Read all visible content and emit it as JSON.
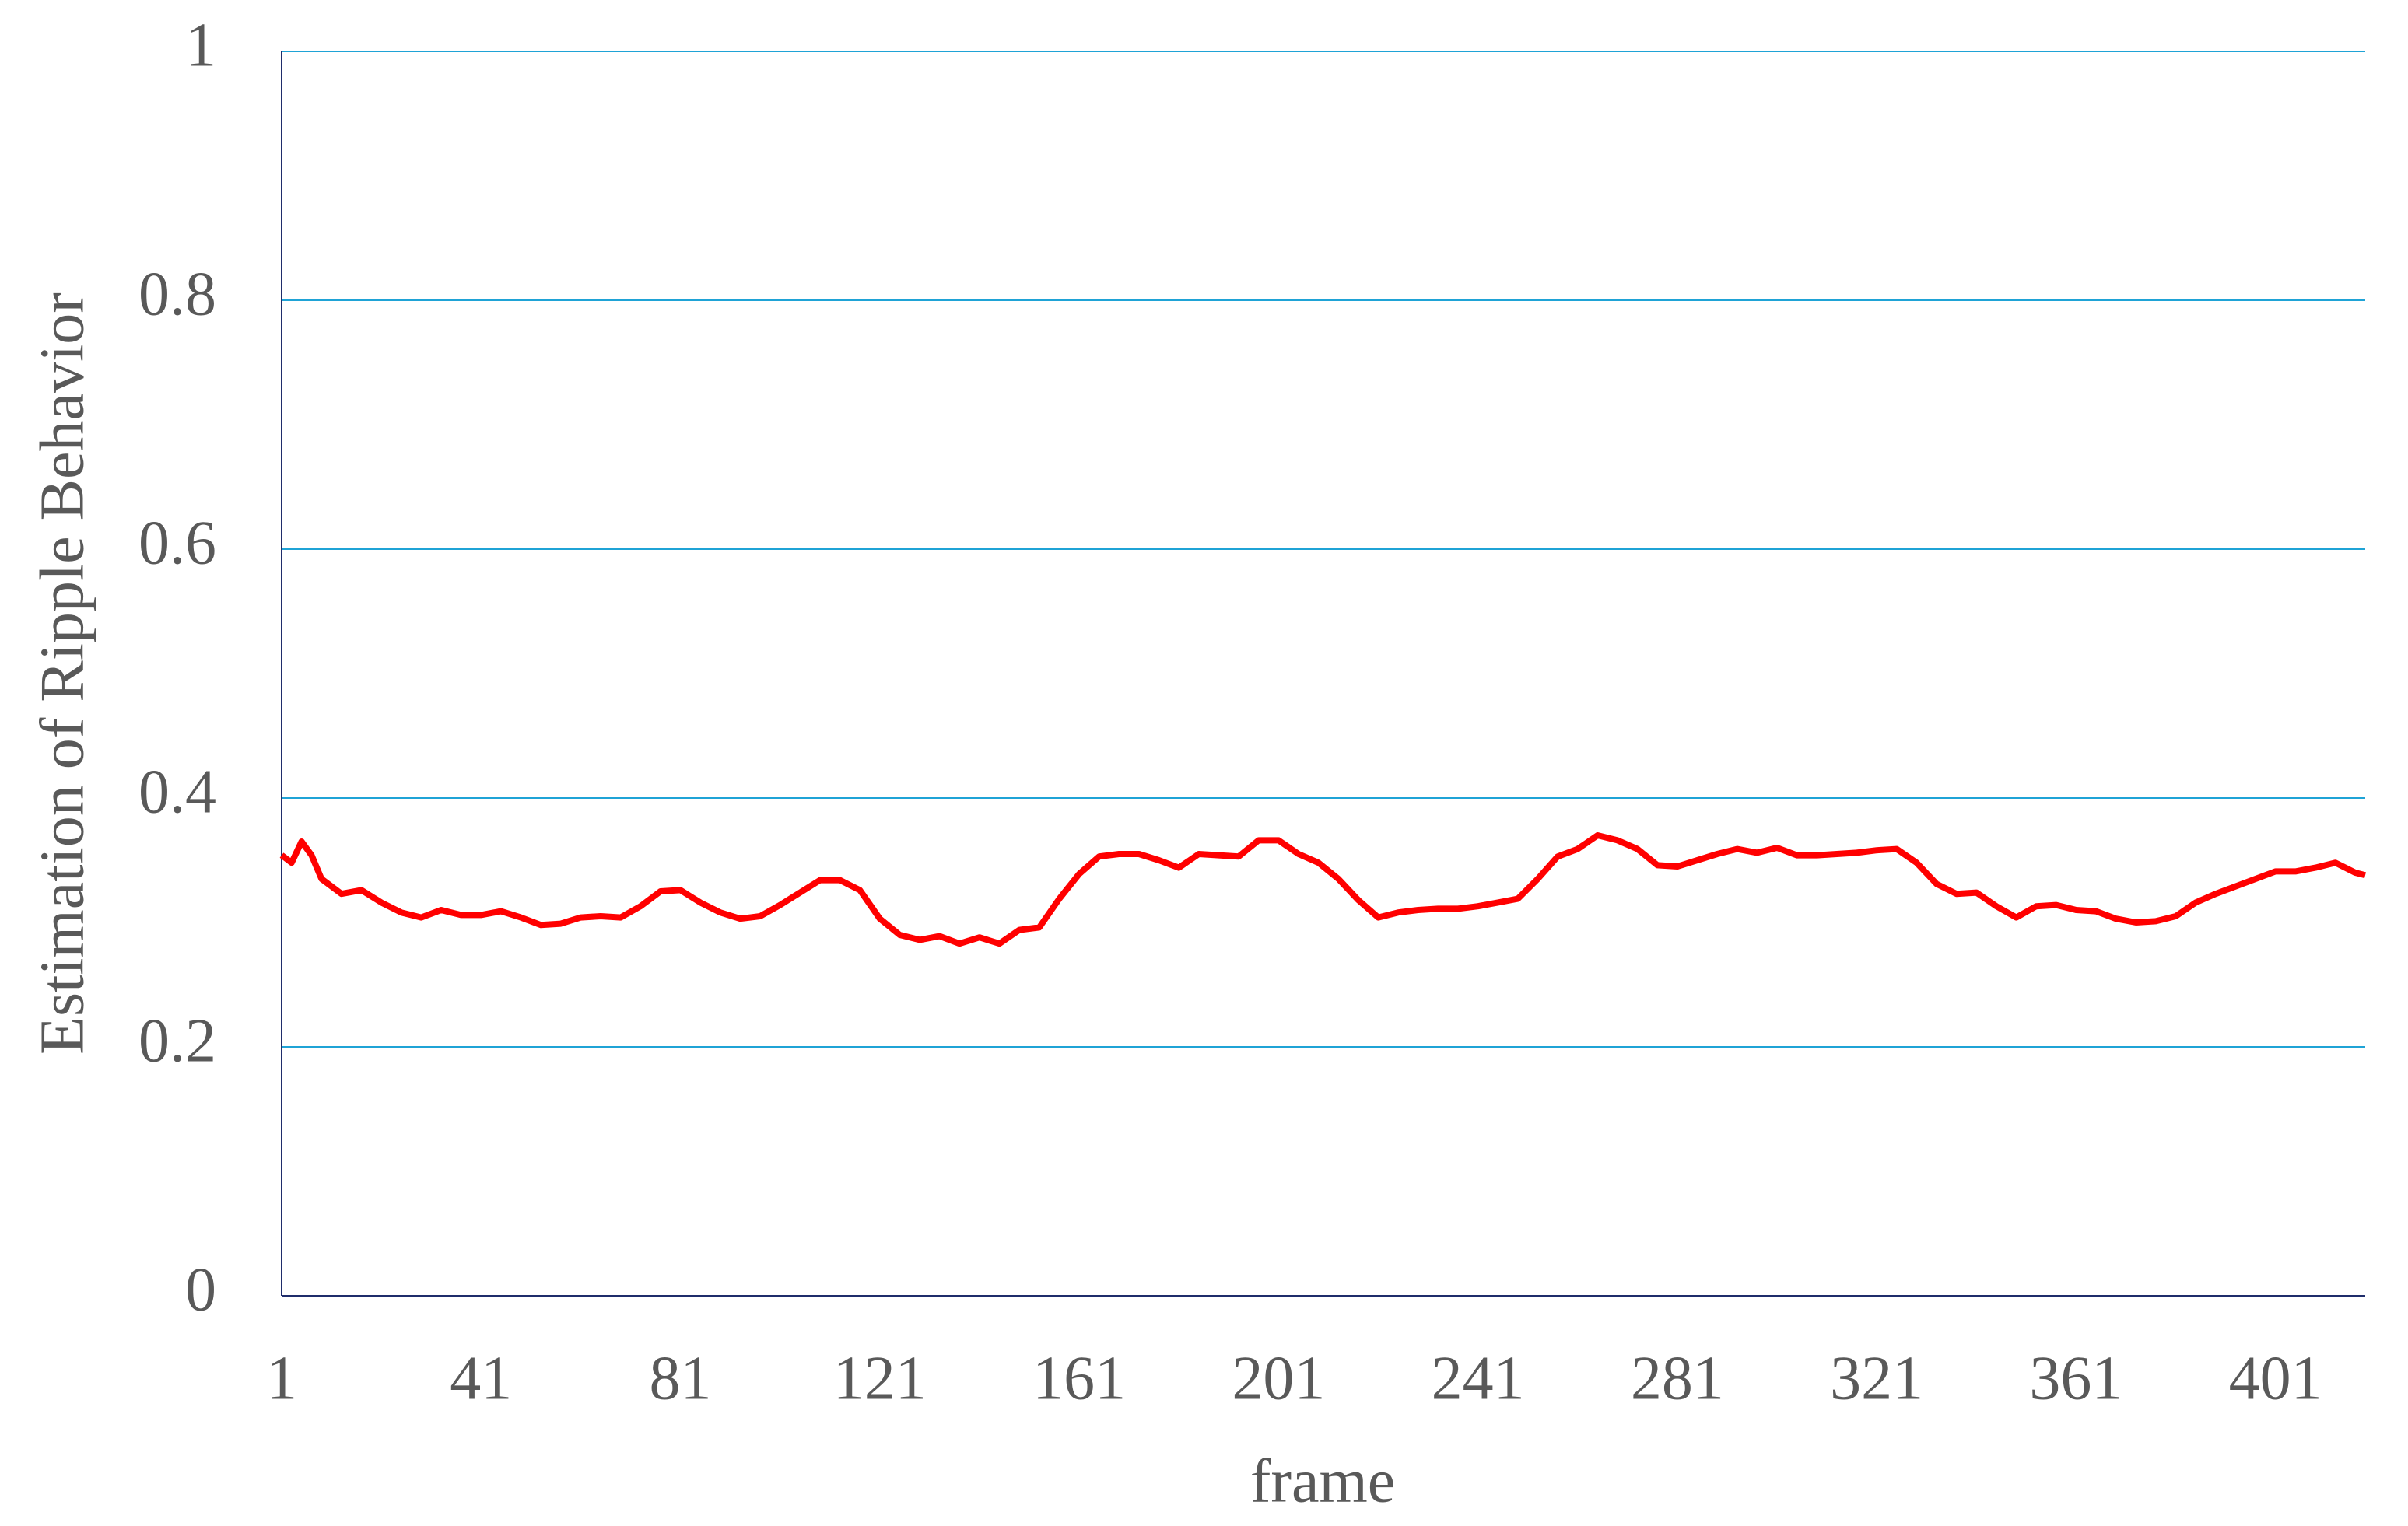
{
  "chart_data": {
    "type": "line",
    "xlabel": "frame",
    "ylabel": "Estimation of Ripple Behavior",
    "x": [
      1,
      3,
      5,
      7,
      9,
      13,
      17,
      21,
      25,
      29,
      33,
      37,
      41,
      45,
      49,
      53,
      57,
      61,
      65,
      69,
      73,
      77,
      81,
      85,
      89,
      93,
      97,
      101,
      105,
      109,
      113,
      117,
      121,
      125,
      129,
      133,
      137,
      141,
      145,
      149,
      153,
      157,
      161,
      165,
      169,
      173,
      177,
      181,
      185,
      189,
      193,
      197,
      201,
      205,
      209,
      213,
      217,
      221,
      225,
      229,
      233,
      237,
      241,
      245,
      249,
      253,
      257,
      261,
      265,
      269,
      273,
      277,
      281,
      285,
      289,
      293,
      297,
      301,
      305,
      309,
      313,
      317,
      321,
      325,
      329,
      333,
      337,
      341,
      345,
      349,
      353,
      357,
      361,
      365,
      369,
      373,
      377,
      381,
      385,
      389,
      393,
      397,
      401,
      405,
      409,
      413,
      417,
      419
    ],
    "series": [
      {
        "color": "#ff0000",
        "values": [
          0.354,
          0.348,
          0.365,
          0.354,
          0.335,
          0.323,
          0.326,
          0.316,
          0.308,
          0.304,
          0.31,
          0.306,
          0.306,
          0.309,
          0.304,
          0.298,
          0.299,
          0.304,
          0.305,
          0.304,
          0.313,
          0.325,
          0.326,
          0.316,
          0.308,
          0.303,
          0.305,
          0.314,
          0.324,
          0.334,
          0.334,
          0.326,
          0.303,
          0.29,
          0.286,
          0.289,
          0.283,
          0.288,
          0.283,
          0.294,
          0.296,
          0.319,
          0.339,
          0.353,
          0.355,
          0.355,
          0.35,
          0.344,
          0.355,
          0.354,
          0.353,
          0.366,
          0.366,
          0.355,
          0.348,
          0.335,
          0.318,
          0.304,
          0.308,
          0.31,
          0.311,
          0.311,
          0.313,
          0.316,
          0.319,
          0.335,
          0.353,
          0.359,
          0.37,
          0.366,
          0.359,
          0.346,
          0.345,
          0.35,
          0.355,
          0.359,
          0.356,
          0.36,
          0.354,
          0.354,
          0.355,
          0.356,
          0.358,
          0.359,
          0.348,
          0.331,
          0.323,
          0.324,
          0.313,
          0.304,
          0.313,
          0.314,
          0.31,
          0.309,
          0.303,
          0.3,
          0.301,
          0.305,
          0.316,
          0.323,
          0.329,
          0.335,
          0.341,
          0.341,
          0.344,
          0.348,
          0.34,
          0.338
        ]
      }
    ],
    "xlim": [
      1,
      419
    ],
    "xticks": [
      1,
      41,
      81,
      121,
      161,
      201,
      241,
      281,
      321,
      361,
      401
    ],
    "ylim": [
      0,
      1
    ],
    "yticks": [
      0,
      0.2,
      0.4,
      0.6,
      0.8,
      1
    ],
    "grid": true
  }
}
